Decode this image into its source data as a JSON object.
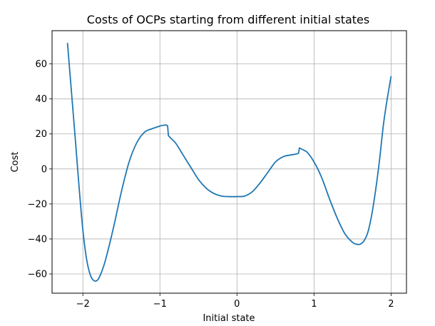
{
  "chart_data": {
    "type": "line",
    "title": "Costs of OCPs starting from different initial states",
    "xlabel": "Initial state",
    "ylabel": "Cost",
    "xlim": [
      -2.4,
      2.2
    ],
    "ylim": [
      -71,
      79
    ],
    "grid": true,
    "line_color": "#1f77b4",
    "x_ticks": [
      {
        "value": -2,
        "label": "−2"
      },
      {
        "value": -1,
        "label": "−1"
      },
      {
        "value": 0,
        "label": "0"
      },
      {
        "value": 1,
        "label": "1"
      },
      {
        "value": 2,
        "label": "2"
      }
    ],
    "y_ticks": [
      {
        "value": -60,
        "label": "−60"
      },
      {
        "value": -40,
        "label": "−40"
      },
      {
        "value": -20,
        "label": "−20"
      },
      {
        "value": 0,
        "label": "0"
      },
      {
        "value": 20,
        "label": "20"
      },
      {
        "value": 40,
        "label": "40"
      },
      {
        "value": 60,
        "label": "60"
      }
    ],
    "series": [
      {
        "name": "Cost",
        "x": [
          -2.2,
          -2.15,
          -2.1,
          -2.05,
          -2.0,
          -1.95,
          -1.9,
          -1.85,
          -1.8,
          -1.75,
          -1.7,
          -1.6,
          -1.5,
          -1.4,
          -1.3,
          -1.2,
          -1.1,
          -1.0,
          -0.95,
          -0.9,
          -0.89,
          -0.89,
          -0.8,
          -0.7,
          -0.6,
          -0.5,
          -0.4,
          -0.3,
          -0.2,
          -0.1,
          0.0,
          0.1,
          0.2,
          0.3,
          0.4,
          0.5,
          0.6,
          0.7,
          0.8,
          0.81,
          0.81,
          0.9,
          1.0,
          1.1,
          1.2,
          1.3,
          1.4,
          1.5,
          1.55,
          1.6,
          1.65,
          1.7,
          1.75,
          1.8,
          1.85,
          1.9,
          1.95,
          2.0
        ],
        "y": [
          72,
          45,
          18,
          -10,
          -35,
          -52,
          -61,
          -64,
          -63,
          -58,
          -51,
          -33,
          -13,
          4,
          15,
          21,
          23,
          24.5,
          25,
          24.5,
          19,
          19,
          15,
          8,
          1,
          -6,
          -11,
          -14,
          -15.5,
          -15.8,
          -15.8,
          -15.5,
          -13,
          -8,
          -2,
          4,
          7,
          8,
          9,
          12,
          12,
          10,
          4,
          -5,
          -17,
          -28,
          -37,
          -42,
          -43,
          -43,
          -41,
          -36,
          -26,
          -12,
          5,
          25,
          40,
          53
        ]
      }
    ]
  }
}
